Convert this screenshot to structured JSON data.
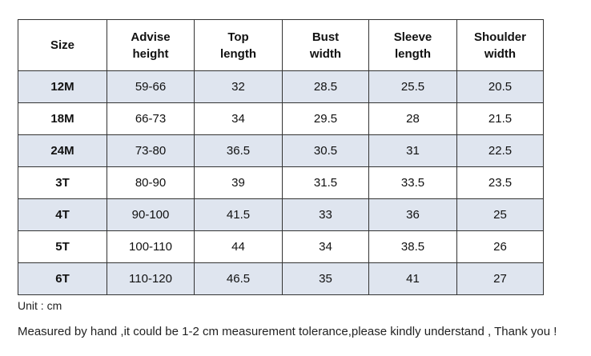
{
  "table": {
    "header": [
      "Size",
      "Advise\nheight",
      "Top\nlength",
      "Bust\nwidth",
      "Sleeve\nlength",
      "Shoulder\nwidth"
    ],
    "rows": [
      [
        "12M",
        "59-66",
        "32",
        "28.5",
        "25.5",
        "20.5"
      ],
      [
        "18M",
        "66-73",
        "34",
        "29.5",
        "28",
        "21.5"
      ],
      [
        "24M",
        "73-80",
        "36.5",
        "30.5",
        "31",
        "22.5"
      ],
      [
        "3T",
        "80-90",
        "39",
        "31.5",
        "33.5",
        "23.5"
      ],
      [
        "4T",
        "90-100",
        "41.5",
        "33",
        "36",
        "25"
      ],
      [
        "5T",
        "100-110",
        "44",
        "34",
        "38.5",
        "26"
      ],
      [
        "6T",
        "110-120",
        "46.5",
        "35",
        "41",
        "27"
      ]
    ]
  },
  "unit_note": "Unit : cm",
  "footer_note": "Measured by hand ,it could be 1-2 cm measurement tolerance,please kindly understand , Thank you !"
}
